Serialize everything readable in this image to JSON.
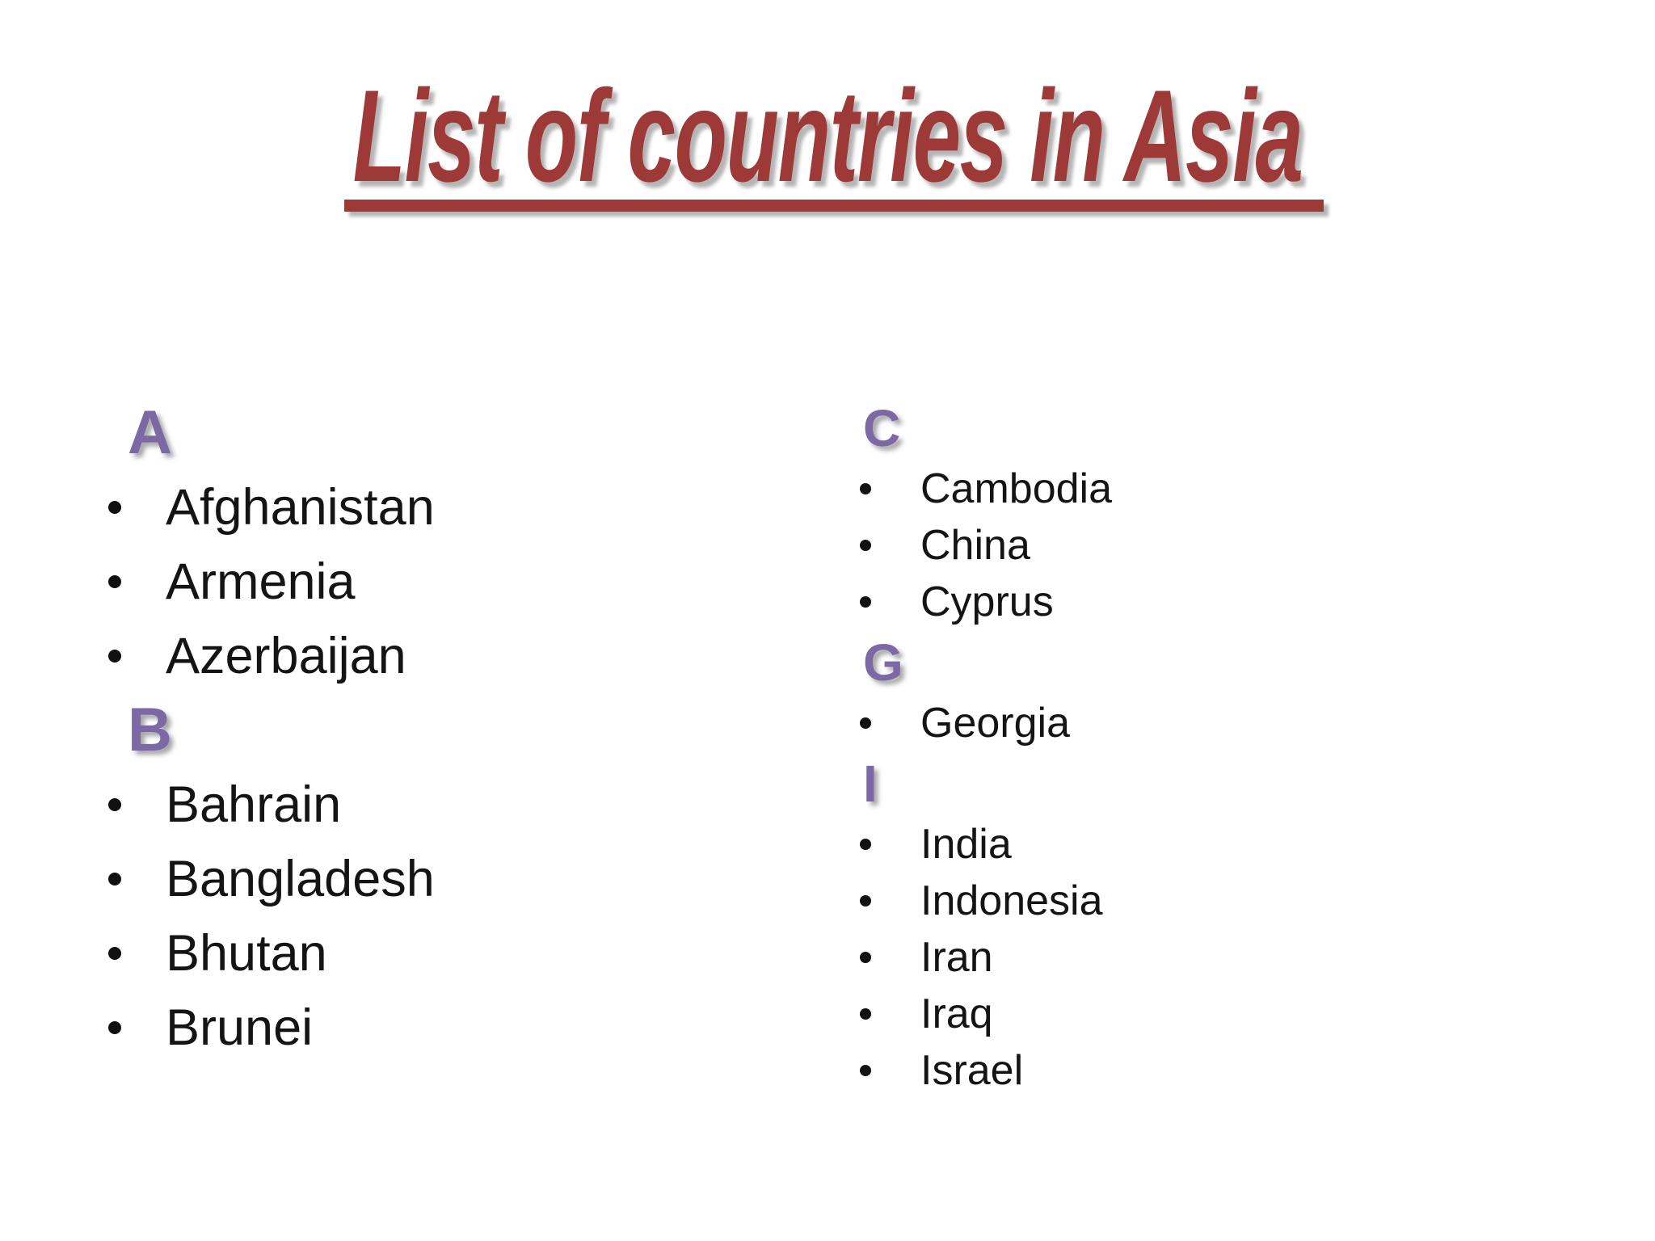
{
  "slide": {
    "title": "List of countries in Asia",
    "colors": {
      "title": "#9d3a38",
      "letter": "#7c68a5",
      "item_text": "#141414",
      "bullet": "#111111"
    },
    "icons": {
      "bullet": "bullet-icon"
    },
    "columns": [
      {
        "id": "left",
        "sections": [
          {
            "letter": "A",
            "items": [
              "Afghanistan",
              "Armenia",
              "Azerbaijan"
            ]
          },
          {
            "letter": "B",
            "items": [
              "Bahrain",
              "Bangladesh",
              "Bhutan",
              "Brunei"
            ]
          }
        ]
      },
      {
        "id": "right",
        "sections": [
          {
            "letter": "C",
            "items": [
              "Cambodia",
              "China",
              "Cyprus"
            ]
          },
          {
            "letter": "G",
            "items": [
              "Georgia"
            ]
          },
          {
            "letter": "I",
            "items": [
              "India",
              "Indonesia",
              "Iran",
              "Iraq",
              "Israel"
            ]
          }
        ]
      }
    ]
  }
}
